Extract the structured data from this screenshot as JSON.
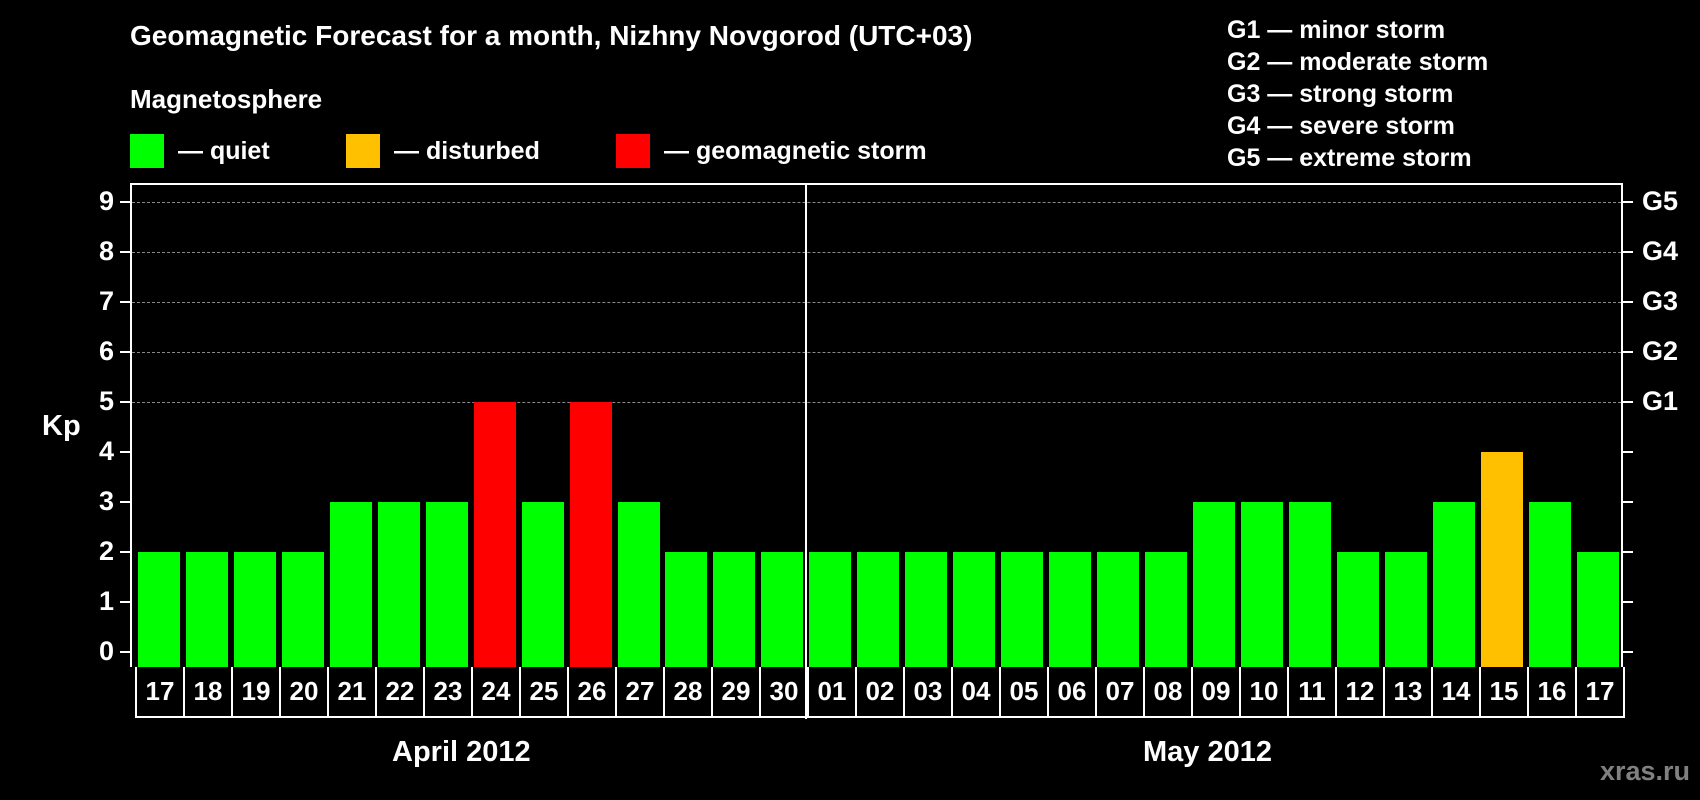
{
  "title": "Geomagnetic Forecast for a month, Nizhny Novgorod (UTC+03)",
  "subtitle": "Magnetosphere",
  "legend": [
    {
      "label": "— quiet",
      "color": "#00ff00"
    },
    {
      "label": "— disturbed",
      "color": "#ffc000"
    },
    {
      "label": "— geomagnetic storm",
      "color": "#ff0000"
    }
  ],
  "g_levels": [
    "G1 — minor storm",
    "G2 — moderate storm",
    "G3 — strong storm",
    "G4 — severe storm",
    "G5 — extreme storm"
  ],
  "y_axis_label": "Kp",
  "y_ticks": [
    "0",
    "1",
    "2",
    "3",
    "4",
    "5",
    "6",
    "7",
    "8",
    "9"
  ],
  "right_ticks": {
    "5": "G1",
    "6": "G2",
    "7": "G3",
    "8": "G4",
    "9": "G5"
  },
  "months": [
    "April 2012",
    "May 2012"
  ],
  "watermark": "xras.ru",
  "colors": {
    "quiet": "#00ff00",
    "disturbed": "#ffc000",
    "storm": "#ff0000",
    "grid": "#8a8a8a",
    "background": "#000000"
  },
  "chart_data": {
    "type": "bar",
    "title": "Geomagnetic Forecast for a month, Nizhny Novgorod (UTC+03)",
    "xlabel": "April 2012 / May 2012",
    "ylabel": "Kp",
    "ylim": [
      0,
      9
    ],
    "grid": "dashed horizontal at Kp 5–9",
    "legend": [
      "quiet",
      "disturbed",
      "geomagnetic storm"
    ],
    "categories": [
      "17",
      "18",
      "19",
      "20",
      "21",
      "22",
      "23",
      "24",
      "25",
      "26",
      "27",
      "28",
      "29",
      "30",
      "01",
      "02",
      "03",
      "04",
      "05",
      "06",
      "07",
      "08",
      "09",
      "10",
      "11",
      "12",
      "13",
      "14",
      "15",
      "16",
      "17"
    ],
    "values": [
      2,
      2,
      2,
      2,
      3,
      3,
      3,
      5,
      3,
      5,
      3,
      2,
      2,
      2,
      2,
      2,
      2,
      2,
      2,
      2,
      2,
      2,
      3,
      3,
      3,
      2,
      2,
      3,
      4,
      3,
      2
    ],
    "status": [
      "quiet",
      "quiet",
      "quiet",
      "quiet",
      "quiet",
      "quiet",
      "quiet",
      "storm",
      "quiet",
      "storm",
      "quiet",
      "quiet",
      "quiet",
      "quiet",
      "quiet",
      "quiet",
      "quiet",
      "quiet",
      "quiet",
      "quiet",
      "quiet",
      "quiet",
      "quiet",
      "quiet",
      "quiet",
      "quiet",
      "quiet",
      "quiet",
      "disturbed",
      "quiet",
      "quiet"
    ],
    "secondary_y_labels": {
      "5": "G1",
      "6": "G2",
      "7": "G3",
      "8": "G4",
      "9": "G5"
    }
  }
}
